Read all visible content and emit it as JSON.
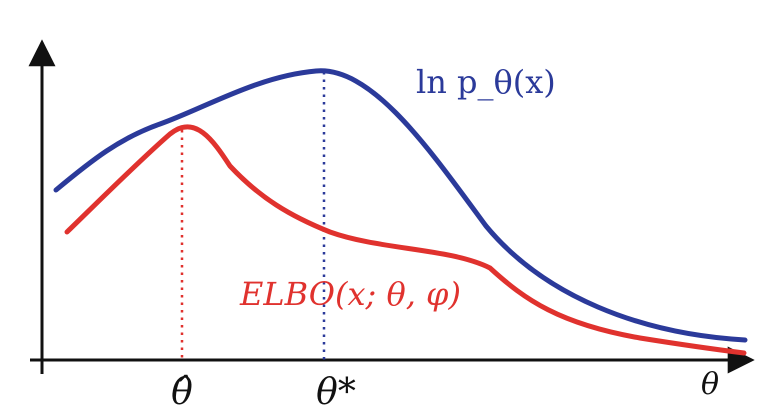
{
  "labels": {
    "log_likelihood": "ln p_θ(x)",
    "elbo": "ELBO(x; θ, φ)",
    "theta_hat": "θ̂",
    "theta_star": "θ*",
    "theta_axis": "θ"
  },
  "colors": {
    "log_likelihood": "#2b3a9a",
    "elbo": "#e0322e",
    "axis": "#111111"
  }
}
